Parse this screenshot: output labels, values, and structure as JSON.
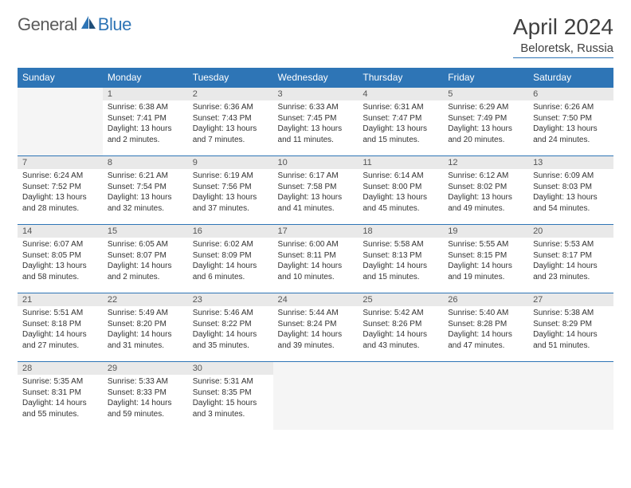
{
  "logo": {
    "part1": "General",
    "part2": "Blue"
  },
  "title": "April 2024",
  "location": "Beloretsk, Russia",
  "colors": {
    "accent": "#2e75b6",
    "header_text": "#ffffff",
    "daynum_bg": "#e9e9e9",
    "empty_bg": "#f5f5f5",
    "body_text": "#333333",
    "title_text": "#404040"
  },
  "weekdays": [
    "Sunday",
    "Monday",
    "Tuesday",
    "Wednesday",
    "Thursday",
    "Friday",
    "Saturday"
  ],
  "first_weekday_index": 1,
  "days": [
    {
      "n": 1,
      "sunrise": "6:38 AM",
      "sunset": "7:41 PM",
      "dl": "13 hours and 2 minutes."
    },
    {
      "n": 2,
      "sunrise": "6:36 AM",
      "sunset": "7:43 PM",
      "dl": "13 hours and 7 minutes."
    },
    {
      "n": 3,
      "sunrise": "6:33 AM",
      "sunset": "7:45 PM",
      "dl": "13 hours and 11 minutes."
    },
    {
      "n": 4,
      "sunrise": "6:31 AM",
      "sunset": "7:47 PM",
      "dl": "13 hours and 15 minutes."
    },
    {
      "n": 5,
      "sunrise": "6:29 AM",
      "sunset": "7:49 PM",
      "dl": "13 hours and 20 minutes."
    },
    {
      "n": 6,
      "sunrise": "6:26 AM",
      "sunset": "7:50 PM",
      "dl": "13 hours and 24 minutes."
    },
    {
      "n": 7,
      "sunrise": "6:24 AM",
      "sunset": "7:52 PM",
      "dl": "13 hours and 28 minutes."
    },
    {
      "n": 8,
      "sunrise": "6:21 AM",
      "sunset": "7:54 PM",
      "dl": "13 hours and 32 minutes."
    },
    {
      "n": 9,
      "sunrise": "6:19 AM",
      "sunset": "7:56 PM",
      "dl": "13 hours and 37 minutes."
    },
    {
      "n": 10,
      "sunrise": "6:17 AM",
      "sunset": "7:58 PM",
      "dl": "13 hours and 41 minutes."
    },
    {
      "n": 11,
      "sunrise": "6:14 AM",
      "sunset": "8:00 PM",
      "dl": "13 hours and 45 minutes."
    },
    {
      "n": 12,
      "sunrise": "6:12 AM",
      "sunset": "8:02 PM",
      "dl": "13 hours and 49 minutes."
    },
    {
      "n": 13,
      "sunrise": "6:09 AM",
      "sunset": "8:03 PM",
      "dl": "13 hours and 54 minutes."
    },
    {
      "n": 14,
      "sunrise": "6:07 AM",
      "sunset": "8:05 PM",
      "dl": "13 hours and 58 minutes."
    },
    {
      "n": 15,
      "sunrise": "6:05 AM",
      "sunset": "8:07 PM",
      "dl": "14 hours and 2 minutes."
    },
    {
      "n": 16,
      "sunrise": "6:02 AM",
      "sunset": "8:09 PM",
      "dl": "14 hours and 6 minutes."
    },
    {
      "n": 17,
      "sunrise": "6:00 AM",
      "sunset": "8:11 PM",
      "dl": "14 hours and 10 minutes."
    },
    {
      "n": 18,
      "sunrise": "5:58 AM",
      "sunset": "8:13 PM",
      "dl": "14 hours and 15 minutes."
    },
    {
      "n": 19,
      "sunrise": "5:55 AM",
      "sunset": "8:15 PM",
      "dl": "14 hours and 19 minutes."
    },
    {
      "n": 20,
      "sunrise": "5:53 AM",
      "sunset": "8:17 PM",
      "dl": "14 hours and 23 minutes."
    },
    {
      "n": 21,
      "sunrise": "5:51 AM",
      "sunset": "8:18 PM",
      "dl": "14 hours and 27 minutes."
    },
    {
      "n": 22,
      "sunrise": "5:49 AM",
      "sunset": "8:20 PM",
      "dl": "14 hours and 31 minutes."
    },
    {
      "n": 23,
      "sunrise": "5:46 AM",
      "sunset": "8:22 PM",
      "dl": "14 hours and 35 minutes."
    },
    {
      "n": 24,
      "sunrise": "5:44 AM",
      "sunset": "8:24 PM",
      "dl": "14 hours and 39 minutes."
    },
    {
      "n": 25,
      "sunrise": "5:42 AM",
      "sunset": "8:26 PM",
      "dl": "14 hours and 43 minutes."
    },
    {
      "n": 26,
      "sunrise": "5:40 AM",
      "sunset": "8:28 PM",
      "dl": "14 hours and 47 minutes."
    },
    {
      "n": 27,
      "sunrise": "5:38 AM",
      "sunset": "8:29 PM",
      "dl": "14 hours and 51 minutes."
    },
    {
      "n": 28,
      "sunrise": "5:35 AM",
      "sunset": "8:31 PM",
      "dl": "14 hours and 55 minutes."
    },
    {
      "n": 29,
      "sunrise": "5:33 AM",
      "sunset": "8:33 PM",
      "dl": "14 hours and 59 minutes."
    },
    {
      "n": 30,
      "sunrise": "5:31 AM",
      "sunset": "8:35 PM",
      "dl": "15 hours and 3 minutes."
    }
  ],
  "labels": {
    "sunrise": "Sunrise:",
    "sunset": "Sunset:",
    "daylight": "Daylight:"
  }
}
